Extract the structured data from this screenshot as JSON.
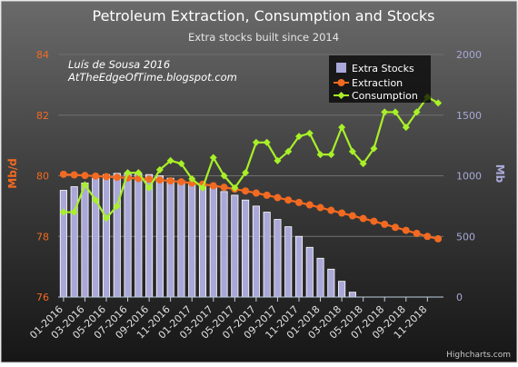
{
  "chart_data": {
    "type": "bar+line",
    "title": "Petroleum Extraction, Consumption and Stocks",
    "subtitle": "Extra stocks built since 2014",
    "annotation_lines": [
      "Luís de Sousa 2016",
      "AtTheEdgeOfTime.blogspot.com"
    ],
    "credits": "Highcharts.com",
    "y_left": {
      "label": "Mb/d",
      "min": 76,
      "max": 84,
      "ticks": [
        "76",
        "78",
        "80",
        "82",
        "84"
      ]
    },
    "y_right": {
      "label": "Mb",
      "min": 0,
      "max": 2000,
      "ticks": [
        "0",
        "500",
        "1000",
        "1500",
        "2000"
      ]
    },
    "x_tick_labels": [
      "01-2016",
      "03-2016",
      "05-2016",
      "07-2016",
      "09-2016",
      "11-2016",
      "01-2017",
      "03-2017",
      "05-2017",
      "07-2017",
      "09-2017",
      "11-2017",
      "01-2018",
      "03-2018",
      "05-2018",
      "07-2018",
      "09-2018",
      "11-2018"
    ],
    "categories": [
      "01-2016",
      "02-2016",
      "03-2016",
      "04-2016",
      "05-2016",
      "06-2016",
      "07-2016",
      "08-2016",
      "09-2016",
      "10-2016",
      "11-2016",
      "12-2016",
      "01-2017",
      "02-2017",
      "03-2017",
      "04-2017",
      "05-2017",
      "06-2017",
      "07-2017",
      "08-2017",
      "09-2017",
      "10-2017",
      "11-2017",
      "12-2017",
      "01-2018",
      "02-2018",
      "03-2018",
      "04-2018",
      "05-2018",
      "06-2018",
      "07-2018",
      "08-2018",
      "09-2018",
      "10-2018",
      "11-2018",
      "12-2018"
    ],
    "legend_position": "top-right",
    "grid": true,
    "series": [
      {
        "name": "Extra Stocks",
        "type": "column",
        "axis": "right",
        "color": "#aaa8d8",
        "values": [
          880,
          910,
          940,
          980,
          1010,
          1020,
          1020,
          1020,
          1010,
          1000,
          980,
          960,
          940,
          920,
          900,
          870,
          840,
          800,
          750,
          700,
          640,
          580,
          500,
          410,
          320,
          230,
          130,
          40,
          null,
          null,
          null,
          null,
          null,
          null,
          null,
          null
        ]
      },
      {
        "name": "Extraction",
        "type": "line",
        "axis": "left",
        "color": "#f26a21",
        "values": [
          80.05,
          80.03,
          80.01,
          79.99,
          79.97,
          79.95,
          79.93,
          79.91,
          79.89,
          79.86,
          79.83,
          79.8,
          79.76,
          79.72,
          79.67,
          79.62,
          79.56,
          79.5,
          79.43,
          79.36,
          79.28,
          79.2,
          79.12,
          79.04,
          78.95,
          78.86,
          78.77,
          78.68,
          78.59,
          78.5,
          78.4,
          78.3,
          78.2,
          78.1,
          78.0,
          77.92
        ]
      },
      {
        "name": "Consumption",
        "type": "line",
        "axis": "left",
        "color": "#a8f028",
        "values": [
          78.8,
          78.8,
          79.7,
          79.2,
          78.6,
          79.0,
          80.1,
          80.1,
          79.6,
          80.2,
          80.5,
          80.4,
          79.9,
          79.6,
          80.6,
          80.0,
          79.6,
          80.1,
          81.1,
          81.1,
          80.5,
          80.8,
          81.3,
          81.4,
          80.7,
          80.7,
          81.6,
          80.8,
          80.4,
          80.9,
          82.1,
          82.1,
          81.6,
          82.1,
          82.6,
          82.4
        ]
      }
    ]
  }
}
